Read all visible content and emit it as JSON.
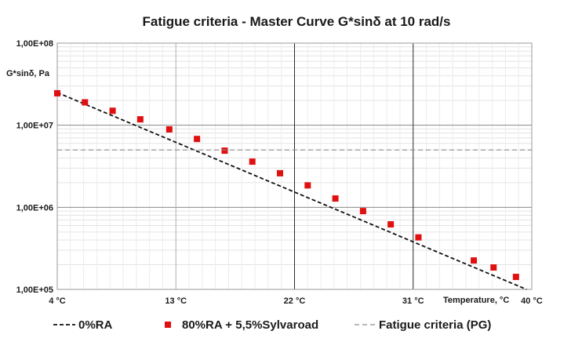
{
  "chart_data": {
    "type": "scatter",
    "title": "Fatigue criteria - Master Curve G*sinδ at 10 rad/s",
    "ylabel": "G*sinδ, Pa",
    "xlabel": "Temperature, °C",
    "y_scale": "log",
    "ylim": [
      100000,
      100000000
    ],
    "xlim": [
      4,
      40
    ],
    "y_ticks": [
      "1,00E+05",
      "1,00E+06",
      "1,00E+07",
      "1,00E+08"
    ],
    "x_ticks": [
      "4 °C",
      "13 °C",
      "22 °C",
      "31 °C",
      "40 °C"
    ],
    "grid": true,
    "legend_position": "bottom",
    "series": [
      {
        "name": "0%RA",
        "kind": "line",
        "style": "dashed",
        "color": "#111111",
        "x": [
          4,
          39.6
        ],
        "y": [
          25000000,
          100000
        ]
      },
      {
        "name": "80%RA + 5,5%Sylvaroad",
        "kind": "scatter",
        "marker": "square",
        "color": "#e01010",
        "x": [
          4,
          6.1,
          8.2,
          10.3,
          12.5,
          14.6,
          16.7,
          18.8,
          20.9,
          23.0,
          25.1,
          27.2,
          29.3,
          31.4,
          35.6,
          37.1,
          38.8
        ],
        "y": [
          24500000,
          19000000,
          15000000,
          11800000,
          8900000,
          6800000,
          4900000,
          3600000,
          2600000,
          1850000,
          1280000,
          900000,
          620000,
          430000,
          225000,
          185000,
          142000
        ]
      },
      {
        "name": "Fatigue criteria (PG)",
        "kind": "line",
        "style": "dashed",
        "color": "#8c8c8c",
        "x": [
          4,
          40
        ],
        "y": [
          5000000,
          5000000
        ]
      }
    ]
  }
}
